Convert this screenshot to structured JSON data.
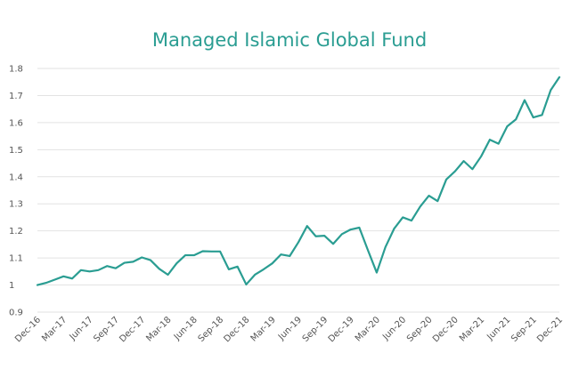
{
  "chart_data": {
    "type": "line",
    "title": "Managed Islamic Global Fund",
    "xlabel": "",
    "ylabel": "",
    "ylim": [
      0.9,
      1.8
    ],
    "yticks": [
      "0.9",
      "1",
      "1.1",
      "1.2",
      "1.3",
      "1.4",
      "1.5",
      "1.6",
      "1.7",
      "1.8"
    ],
    "xtick_labels": [
      "Dec-16",
      "Mar-17",
      "Jun-17",
      "Sep-17",
      "Dec-17",
      "Mar-18",
      "Jun-18",
      "Sep-18",
      "Dec-18",
      "Mar-19",
      "Jun-19",
      "Sep-19",
      "Dec-19",
      "Mar-20",
      "Jun-20",
      "Sep-20",
      "Dec-20",
      "Mar-21",
      "Jun-21",
      "Sep-21",
      "Dec-21"
    ],
    "grid": true,
    "color": "#2a9d92",
    "series": [
      {
        "values": [
          1.0,
          1.008,
          1.02,
          1.032,
          1.024,
          1.055,
          1.05,
          1.055,
          1.07,
          1.062,
          1.082,
          1.086,
          1.102,
          1.092,
          1.06,
          1.038,
          1.08,
          1.11,
          1.11,
          1.125,
          1.124,
          1.124,
          1.058,
          1.068,
          1.002,
          1.038,
          1.058,
          1.08,
          1.113,
          1.107,
          1.158,
          1.218,
          1.18,
          1.182,
          1.152,
          1.188,
          1.205,
          1.212,
          1.128,
          1.046,
          1.14,
          1.208,
          1.25,
          1.238,
          1.29,
          1.33,
          1.31,
          1.39,
          1.42,
          1.458,
          1.428,
          1.475,
          1.537,
          1.522,
          1.586,
          1.612,
          1.683,
          1.619,
          1.628,
          1.72,
          1.768
        ]
      }
    ]
  }
}
